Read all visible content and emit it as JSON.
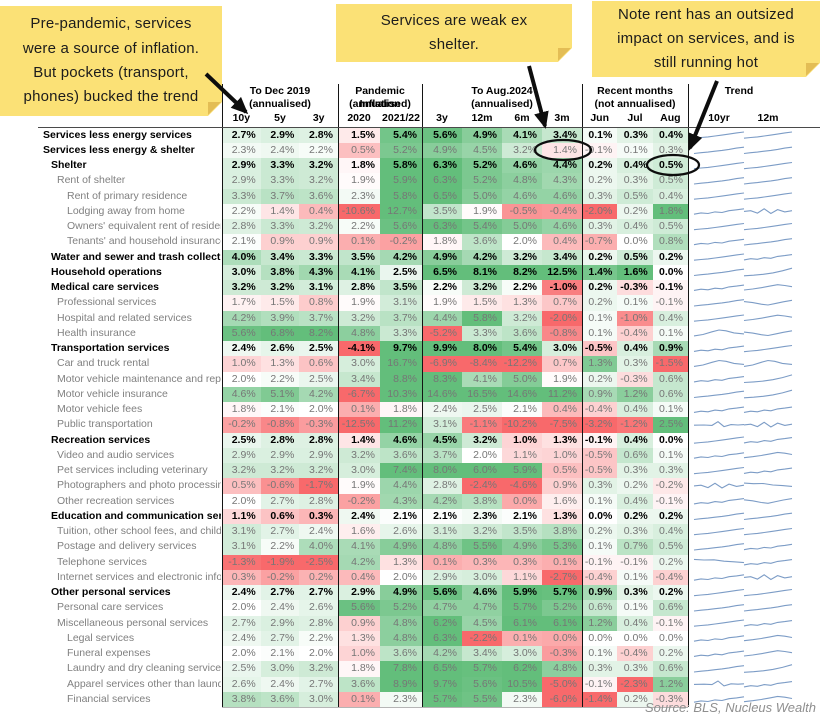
{
  "notes": [
    {
      "text": "Pre-pandemic, services\nwere a source of inflation.\nBut pockets (transport,\nphones) bucked the trend"
    },
    {
      "text": "Services are weak ex\nshelter."
    },
    {
      "text": "Note rent has an outsized\nimpact on services, and is\nstill running hot"
    }
  ],
  "source": "Source: BLS, Nucleus Wealth",
  "chart_data": {
    "type": "heatmap",
    "unit": "%",
    "legend_position": "none",
    "color_scale": {
      "negative": "#F8696B",
      "mid": "#FFFFFF",
      "positive": "#63BE7B"
    },
    "sparkline_color": "#7c9cc6",
    "column_groups": [
      {
        "title": "To Dec 2019",
        "subtitle": "(annualised)",
        "columns": [
          "10y",
          "5y",
          "3y"
        ]
      },
      {
        "title": "Pandemic Inflation",
        "subtitle": "(annualised)",
        "columns": [
          "2020",
          "2021/22"
        ]
      },
      {
        "title": "To Aug.2024",
        "subtitle": "(annualised)",
        "columns": [
          "3y",
          "12m",
          "6m",
          "3m"
        ]
      },
      {
        "title": "Recent months",
        "subtitle": "(not annualised)",
        "columns": [
          "Jun",
          "Jul",
          "Aug"
        ]
      },
      {
        "title": "Trend",
        "subtitle": "",
        "columns": [
          "10yr",
          "12m"
        ]
      }
    ],
    "rows": [
      {
        "label": "Services less energy services",
        "indent": 0,
        "bold": true,
        "values_bold": true,
        "values": [
          2.7,
          2.9,
          2.8,
          1.5,
          5.4,
          5.6,
          4.9,
          4.1,
          3.4,
          0.1,
          0.3,
          0.4
        ],
        "trend": [
          "rise",
          "rise"
        ]
      },
      {
        "label": "Services less energy & shelter",
        "indent": 0,
        "bold": true,
        "values_bold": false,
        "values": [
          2.3,
          2.4,
          2.2,
          0.5,
          5.2,
          4.9,
          4.5,
          3.2,
          1.4,
          -0.1,
          0.1,
          0.3
        ],
        "trend": [
          "rise",
          "rise"
        ]
      },
      {
        "label": "Shelter",
        "indent": 1,
        "bold": true,
        "values_bold": true,
        "values": [
          2.9,
          3.3,
          3.2,
          1.8,
          5.8,
          6.3,
          5.2,
          4.6,
          4.4,
          0.2,
          0.4,
          0.5
        ],
        "trend": [
          "rise",
          "rise"
        ]
      },
      {
        "label": "Rent of shelter",
        "indent": 2,
        "bold": false,
        "values_bold": false,
        "values": [
          2.9,
          3.3,
          3.2,
          1.9,
          5.9,
          6.3,
          5.2,
          4.8,
          4.3,
          0.2,
          0.3,
          0.5
        ],
        "trend": [
          "rise",
          "rise"
        ]
      },
      {
        "label": "Rent of primary residence",
        "indent": 3,
        "bold": false,
        "values_bold": false,
        "values": [
          3.3,
          3.7,
          3.6,
          2.3,
          5.8,
          6.5,
          5.0,
          4.6,
          4.6,
          0.3,
          0.5,
          0.4
        ],
        "trend": [
          "rise",
          "rise"
        ]
      },
      {
        "label": "Lodging away from home",
        "indent": 3,
        "bold": false,
        "values_bold": false,
        "values": [
          2.2,
          1.4,
          0.4,
          -10.6,
          12.7,
          3.5,
          1.9,
          -0.5,
          -0.4,
          -2.0,
          0.2,
          1.8
        ],
        "trend": [
          "wavy",
          "zigzag"
        ]
      },
      {
        "label": "Owners' equivalent rent of residences",
        "indent": 3,
        "bold": false,
        "values_bold": false,
        "values": [
          2.8,
          3.3,
          3.2,
          2.2,
          5.6,
          6.3,
          5.4,
          5.0,
          4.6,
          0.3,
          0.4,
          0.5
        ],
        "trend": [
          "rise",
          "rise"
        ]
      },
      {
        "label": "Tenants' and household insurance",
        "indent": 3,
        "bold": false,
        "values_bold": false,
        "values": [
          2.1,
          0.9,
          0.9,
          0.1,
          -0.2,
          1.8,
          3.6,
          2.0,
          0.4,
          -0.7,
          0.0,
          0.8
        ],
        "trend": [
          "wavy",
          "rise"
        ]
      },
      {
        "label": "Water and sewer and trash collection services",
        "indent": 1,
        "bold": true,
        "values_bold": true,
        "values": [
          4.0,
          3.4,
          3.3,
          3.5,
          4.2,
          4.9,
          4.2,
          3.2,
          3.4,
          0.2,
          0.5,
          0.2
        ],
        "trend": [
          "rise",
          "wavy"
        ]
      },
      {
        "label": "Household operations",
        "indent": 1,
        "bold": true,
        "values_bold": true,
        "values": [
          3.0,
          3.8,
          4.3,
          4.1,
          2.5,
          6.5,
          8.1,
          8.2,
          12.5,
          1.4,
          1.6,
          0.0
        ],
        "trend": [
          "rise",
          "rise2"
        ]
      },
      {
        "label": "Medical care services",
        "indent": 1,
        "bold": true,
        "values_bold": true,
        "values": [
          3.2,
          3.2,
          3.1,
          2.8,
          3.5,
          2.2,
          3.2,
          2.2,
          -1.0,
          0.2,
          -0.3,
          -0.1
        ],
        "trend": [
          "wavy",
          "humpend"
        ]
      },
      {
        "label": "Professional services",
        "indent": 2,
        "bold": false,
        "values_bold": false,
        "values": [
          1.7,
          1.5,
          0.8,
          1.9,
          3.1,
          1.9,
          1.5,
          1.3,
          0.7,
          0.2,
          0.1,
          -0.1
        ],
        "trend": [
          "rise",
          "dip"
        ]
      },
      {
        "label": "Hospital and related services",
        "indent": 2,
        "bold": false,
        "values_bold": false,
        "values": [
          4.2,
          3.9,
          3.7,
          3.2,
          3.7,
          4.4,
          5.8,
          3.2,
          -2.0,
          0.1,
          -1.0,
          0.4
        ],
        "trend": [
          "rise",
          "humpend"
        ]
      },
      {
        "label": "Health insurance",
        "indent": 2,
        "bold": false,
        "values_bold": false,
        "values": [
          5.6,
          6.8,
          8.2,
          4.8,
          3.3,
          -5.2,
          3.3,
          3.6,
          -0.8,
          0.1,
          -0.4,
          0.1
        ],
        "trend": [
          "hump",
          "dip"
        ]
      },
      {
        "label": "Transportation services",
        "indent": 1,
        "bold": true,
        "values_bold": true,
        "values": [
          2.4,
          2.6,
          2.5,
          -4.1,
          9.7,
          9.9,
          8.0,
          5.4,
          3.0,
          -0.5,
          0.4,
          0.9
        ],
        "trend": [
          "wavy",
          "rise"
        ]
      },
      {
        "label": "Car and truck rental",
        "indent": 2,
        "bold": false,
        "values_bold": false,
        "values": [
          1.0,
          1.3,
          0.6,
          3.0,
          16.7,
          -6.9,
          -8.4,
          -12.2,
          0.7,
          1.3,
          0.3,
          -1.5
        ],
        "trend": [
          "hump",
          "hump"
        ]
      },
      {
        "label": "Motor vehicle maintenance and repair",
        "indent": 2,
        "bold": false,
        "values_bold": false,
        "values": [
          2.0,
          2.2,
          2.5,
          3.4,
          8.8,
          8.3,
          4.1,
          5.0,
          1.9,
          0.2,
          -0.3,
          0.6
        ],
        "trend": [
          "wavy",
          "rise2"
        ]
      },
      {
        "label": "Motor vehicle insurance",
        "indent": 2,
        "bold": false,
        "values_bold": false,
        "values": [
          4.6,
          5.1,
          4.2,
          -6.7,
          10.3,
          14.6,
          16.5,
          14.6,
          11.2,
          0.9,
          1.2,
          0.6
        ],
        "trend": [
          "rise",
          "rise2"
        ]
      },
      {
        "label": "Motor vehicle fees",
        "indent": 2,
        "bold": false,
        "values_bold": false,
        "values": [
          1.8,
          2.1,
          2.0,
          0.1,
          1.8,
          2.4,
          2.5,
          2.1,
          0.4,
          -0.4,
          0.4,
          0.1
        ],
        "trend": [
          "wavy",
          "wavy"
        ]
      },
      {
        "label": "Public transportation",
        "indent": 2,
        "bold": false,
        "values_bold": false,
        "values": [
          -0.2,
          -0.8,
          -0.3,
          -12.5,
          11.2,
          3.1,
          -1.1,
          -10.2,
          -7.5,
          -3.2,
          -1.2,
          2.5
        ],
        "trend": [
          "spike",
          "zigzag"
        ]
      },
      {
        "label": "Recreation services",
        "indent": 1,
        "bold": true,
        "values_bold": true,
        "values": [
          2.5,
          2.8,
          2.8,
          1.4,
          4.6,
          4.5,
          3.2,
          1.0,
          1.3,
          -0.1,
          0.4,
          0.0
        ],
        "trend": [
          "rise",
          "wavy"
        ]
      },
      {
        "label": "Video and audio services",
        "indent": 2,
        "bold": false,
        "values_bold": false,
        "values": [
          2.9,
          2.9,
          2.9,
          3.2,
          3.6,
          3.7,
          2.0,
          1.1,
          1.0,
          -0.5,
          0.6,
          0.1
        ],
        "trend": [
          "wavy",
          "humpend"
        ]
      },
      {
        "label": "Pet services including veterinary",
        "indent": 2,
        "bold": false,
        "values_bold": false,
        "values": [
          3.2,
          3.2,
          3.2,
          3.0,
          7.4,
          8.0,
          6.0,
          5.9,
          0.5,
          -0.5,
          0.3,
          0.3
        ],
        "trend": [
          "rise",
          "wavy"
        ]
      },
      {
        "label": "Photographers and photo processing",
        "indent": 2,
        "bold": false,
        "values_bold": false,
        "values": [
          0.5,
          -0.6,
          -1.7,
          1.9,
          4.4,
          2.8,
          -2.4,
          -4.6,
          0.9,
          0.3,
          0.2,
          -0.2
        ],
        "trend": [
          "zigzag",
          "fall"
        ]
      },
      {
        "label": "Other recreation services",
        "indent": 2,
        "bold": false,
        "values_bold": false,
        "values": [
          2.0,
          2.7,
          2.8,
          -0.2,
          4.3,
          4.2,
          3.8,
          0.0,
          1.6,
          0.1,
          0.4,
          -0.1
        ],
        "trend": [
          "wavy",
          "dip"
        ]
      },
      {
        "label": "Education and communication services",
        "indent": 1,
        "bold": true,
        "values_bold": true,
        "values": [
          1.1,
          0.6,
          0.3,
          2.4,
          2.1,
          2.1,
          2.3,
          2.1,
          1.3,
          0.0,
          0.2,
          0.2
        ],
        "trend": [
          "rise",
          "rise"
        ]
      },
      {
        "label": "Tuition, other school fees, and childcare",
        "indent": 2,
        "bold": false,
        "values_bold": false,
        "values": [
          3.1,
          2.7,
          2.4,
          1.6,
          2.6,
          3.1,
          3.2,
          3.5,
          3.8,
          0.2,
          0.3,
          0.4
        ],
        "trend": [
          "rise",
          "rise"
        ]
      },
      {
        "label": "Postage and delivery services",
        "indent": 2,
        "bold": false,
        "values_bold": false,
        "values": [
          3.1,
          2.2,
          4.0,
          4.1,
          4.9,
          4.8,
          5.5,
          4.9,
          5.3,
          0.1,
          0.7,
          0.5
        ],
        "trend": [
          "rise",
          "wavy"
        ]
      },
      {
        "label": "Telephone services",
        "indent": 2,
        "bold": false,
        "values_bold": false,
        "values": [
          -1.3,
          -1.9,
          -2.5,
          4.2,
          1.3,
          0.1,
          0.3,
          0.3,
          0.1,
          -0.1,
          -0.1,
          0.2
        ],
        "trend": [
          "fall",
          "wavy"
        ]
      },
      {
        "label": "Internet services and electronic information providers",
        "indent": 2,
        "bold": false,
        "values_bold": false,
        "values": [
          0.3,
          -0.2,
          0.2,
          0.4,
          2.0,
          2.9,
          3.0,
          1.1,
          -2.7,
          -0.4,
          0.1,
          -0.4
        ],
        "trend": [
          "wavy",
          "zigzag"
        ]
      },
      {
        "label": "Other personal services",
        "indent": 1,
        "bold": true,
        "values_bold": true,
        "values": [
          2.4,
          2.7,
          2.7,
          2.9,
          4.9,
          5.6,
          4.6,
          5.9,
          5.7,
          0.9,
          0.3,
          0.2
        ],
        "trend": [
          "rise",
          "rise"
        ]
      },
      {
        "label": "Personal care services",
        "indent": 2,
        "bold": false,
        "values_bold": false,
        "values": [
          2.0,
          2.4,
          2.6,
          5.6,
          5.2,
          4.7,
          4.7,
          5.7,
          5.2,
          0.6,
          0.1,
          0.6
        ],
        "trend": [
          "rise",
          "rise"
        ]
      },
      {
        "label": "Miscellaneous personal services",
        "indent": 2,
        "bold": false,
        "values_bold": false,
        "values": [
          2.7,
          2.9,
          2.8,
          0.9,
          4.8,
          6.2,
          4.5,
          6.1,
          6.1,
          1.2,
          0.4,
          -0.1
        ],
        "trend": [
          "rise",
          "wavy"
        ]
      },
      {
        "label": "Legal services",
        "indent": 3,
        "bold": false,
        "values_bold": false,
        "values": [
          2.4,
          2.7,
          2.2,
          1.3,
          4.8,
          6.3,
          -2.2,
          0.1,
          0.0,
          0.0,
          0.0,
          0.0
        ],
        "trend": [
          "wavy",
          "humpend"
        ]
      },
      {
        "label": "Funeral expenses",
        "indent": 3,
        "bold": false,
        "values_bold": false,
        "values": [
          2.0,
          2.1,
          2.0,
          1.0,
          3.6,
          4.2,
          3.4,
          3.0,
          -0.3,
          0.1,
          -0.4,
          0.2
        ],
        "trend": [
          "wavy",
          "humpend"
        ]
      },
      {
        "label": "Laundry and dry cleaning services",
        "indent": 3,
        "bold": false,
        "values_bold": false,
        "values": [
          2.5,
          3.0,
          3.2,
          1.8,
          7.8,
          6.5,
          5.7,
          6.2,
          4.8,
          0.3,
          0.3,
          0.6
        ],
        "trend": [
          "rise",
          "rise2"
        ]
      },
      {
        "label": "Apparel services other than laundry",
        "indent": 3,
        "bold": false,
        "values_bold": false,
        "values": [
          2.6,
          2.4,
          2.7,
          3.6,
          8.9,
          9.7,
          5.6,
          10.5,
          -5.0,
          -0.1,
          -2.3,
          1.2
        ],
        "trend": [
          "spike",
          "wavy"
        ]
      },
      {
        "label": "Financial services",
        "indent": 3,
        "bold": false,
        "values_bold": false,
        "values": [
          3.8,
          3.6,
          3.0,
          0.1,
          2.3,
          5.7,
          5.5,
          2.3,
          -6.0,
          -1.4,
          0.2,
          -0.3
        ],
        "trend": [
          "wavy",
          "humpend"
        ]
      }
    ]
  }
}
